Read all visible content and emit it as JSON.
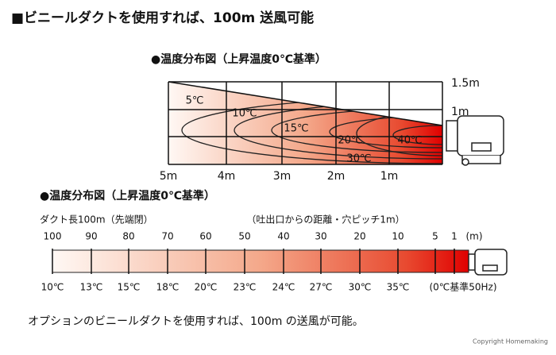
{
  "title": "■ビニールダクトを使用すれば、100m 送風可能",
  "diagram1": {
    "heading": "●温度分布図（上昇温度0℃基準）",
    "contour_labels": [
      "5℃",
      "10℃",
      "15℃",
      "20℃",
      "30℃",
      "40℃"
    ],
    "x_labels": [
      "5m",
      "4m",
      "3m",
      "2m",
      "1m"
    ],
    "y_labels": [
      "1.5m",
      "1m"
    ]
  },
  "diagram2": {
    "heading": "●温度分布図（上昇温度0℃基準）",
    "duct_label": "ダクト長100m（先端閉）",
    "distance_note": "（吐出口からの距離・穴ピッチ1m）",
    "distance_labels": [
      "100",
      "90",
      "80",
      "70",
      "60",
      "50",
      "40",
      "30",
      "20",
      "10",
      "5",
      "1",
      "(m)"
    ],
    "temperature_labels": [
      "10℃",
      "13℃",
      "15℃",
      "18℃",
      "20℃",
      "23℃",
      "24℃",
      "27℃",
      "30℃",
      "35℃",
      "(0℃基準50Hz)"
    ]
  },
  "caption": "オプションのビニールダクトを使用すれば、100m の送風が可能。",
  "copyright": "Copyright Homemaking"
}
